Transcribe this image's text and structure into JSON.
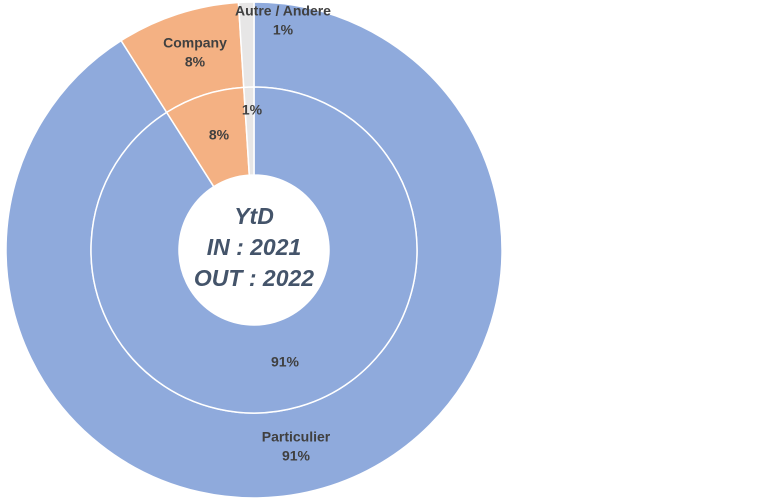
{
  "chart_data": {
    "type": "doughnut",
    "categories": [
      "Particulier",
      "Company",
      "Autre / Andere"
    ],
    "colors": [
      "#8faadc",
      "#f4b183",
      "#e7e6e6"
    ],
    "center_text": [
      "YtD",
      "IN : 2021",
      "OUT : 2022"
    ],
    "series": [
      {
        "values": [
          91,
          8,
          1
        ],
        "value_labels": [
          "91%",
          "8%",
          "1%"
        ]
      },
      {
        "values": [
          91,
          8,
          1
        ],
        "value_labels": [
          "91%",
          "8%",
          "1%"
        ]
      }
    ]
  }
}
